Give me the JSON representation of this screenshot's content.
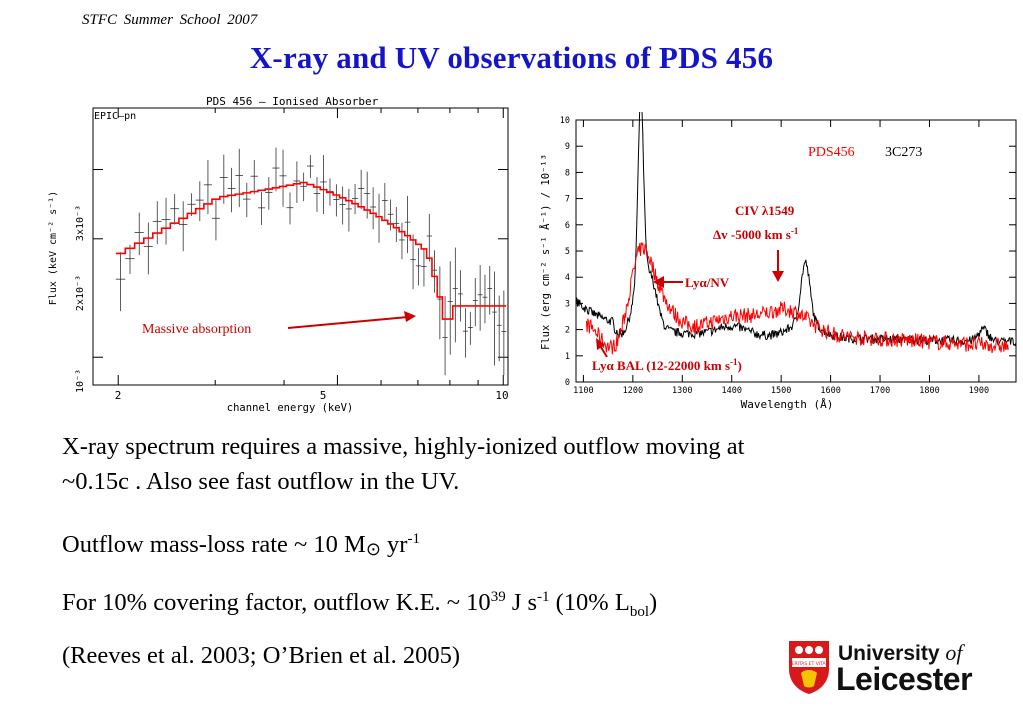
{
  "header": {
    "school": "STFC  Summer  School  2007",
    "title": "X-ray and UV observations of PDS 456"
  },
  "xray_chart": {
    "title": "PDS 456 — Ionised Absorber",
    "instrument": "EPIC—pn",
    "xlabel": "channel energy (keV)",
    "ylabel": "Flux (keV cm⁻² s⁻¹)",
    "xticks": [
      "2",
      "5",
      "10"
    ],
    "yticks": [
      "3x10⁻³",
      "2x10⁻³",
      "10⁻³"
    ],
    "annotation": "Massive absorption"
  },
  "uv_chart": {
    "xlabel": "Wavelength (Å)",
    "ylabel": "Flux (erg cm⁻² s⁻¹ Å⁻¹) / 10⁻¹³",
    "xticks": [
      "1100",
      "1200",
      "1300",
      "1400",
      "1500",
      "1600",
      "1700",
      "1800",
      "1900"
    ],
    "yticks": [
      "0",
      "1",
      "2",
      "3",
      "4",
      "5",
      "6",
      "7",
      "8",
      "9",
      "10"
    ],
    "legend": {
      "pds456": "PDS456",
      "c3c273": "3C273"
    },
    "civ_line1": "CIV λ1549",
    "civ_line2": "Δv -5000 km s",
    "civ_sup": "-1",
    "lya_nv": "Lyα/NV",
    "lya_bal": "Lyα BAL (12-22000 km s",
    "lya_bal_sup": "-1",
    "lya_bal_end": ")",
    "colors": {
      "pds456": "#ff0000",
      "c3c273": "#000000",
      "annotation": "#cc0000"
    }
  },
  "body": {
    "line1a": "X-ray spectrum requires a massive, highly-ionized outflow moving at",
    "line1b": "~0.15c . Also see fast outflow in the UV.",
    "line2": "Outflow mass-loss rate ~ 10 M",
    "line2_sun": "⊙",
    "line2_tail": " yr",
    "line2_sup": "-1",
    "line3_a": "For 10% covering factor, outflow K.E. ~ 10",
    "line3_sup1": "39",
    "line3_b": " J s",
    "line3_sup2": "-1",
    "line3_c": " (10% L",
    "line3_sub": "bol",
    "line3_d": ")",
    "line4": "(Reeves et al. 2003; O’Brien et al. 2005)"
  },
  "logo": {
    "line1": "University",
    "of": "of",
    "line2": "Leicester",
    "motto": "VERITAS ET VITAM"
  }
}
